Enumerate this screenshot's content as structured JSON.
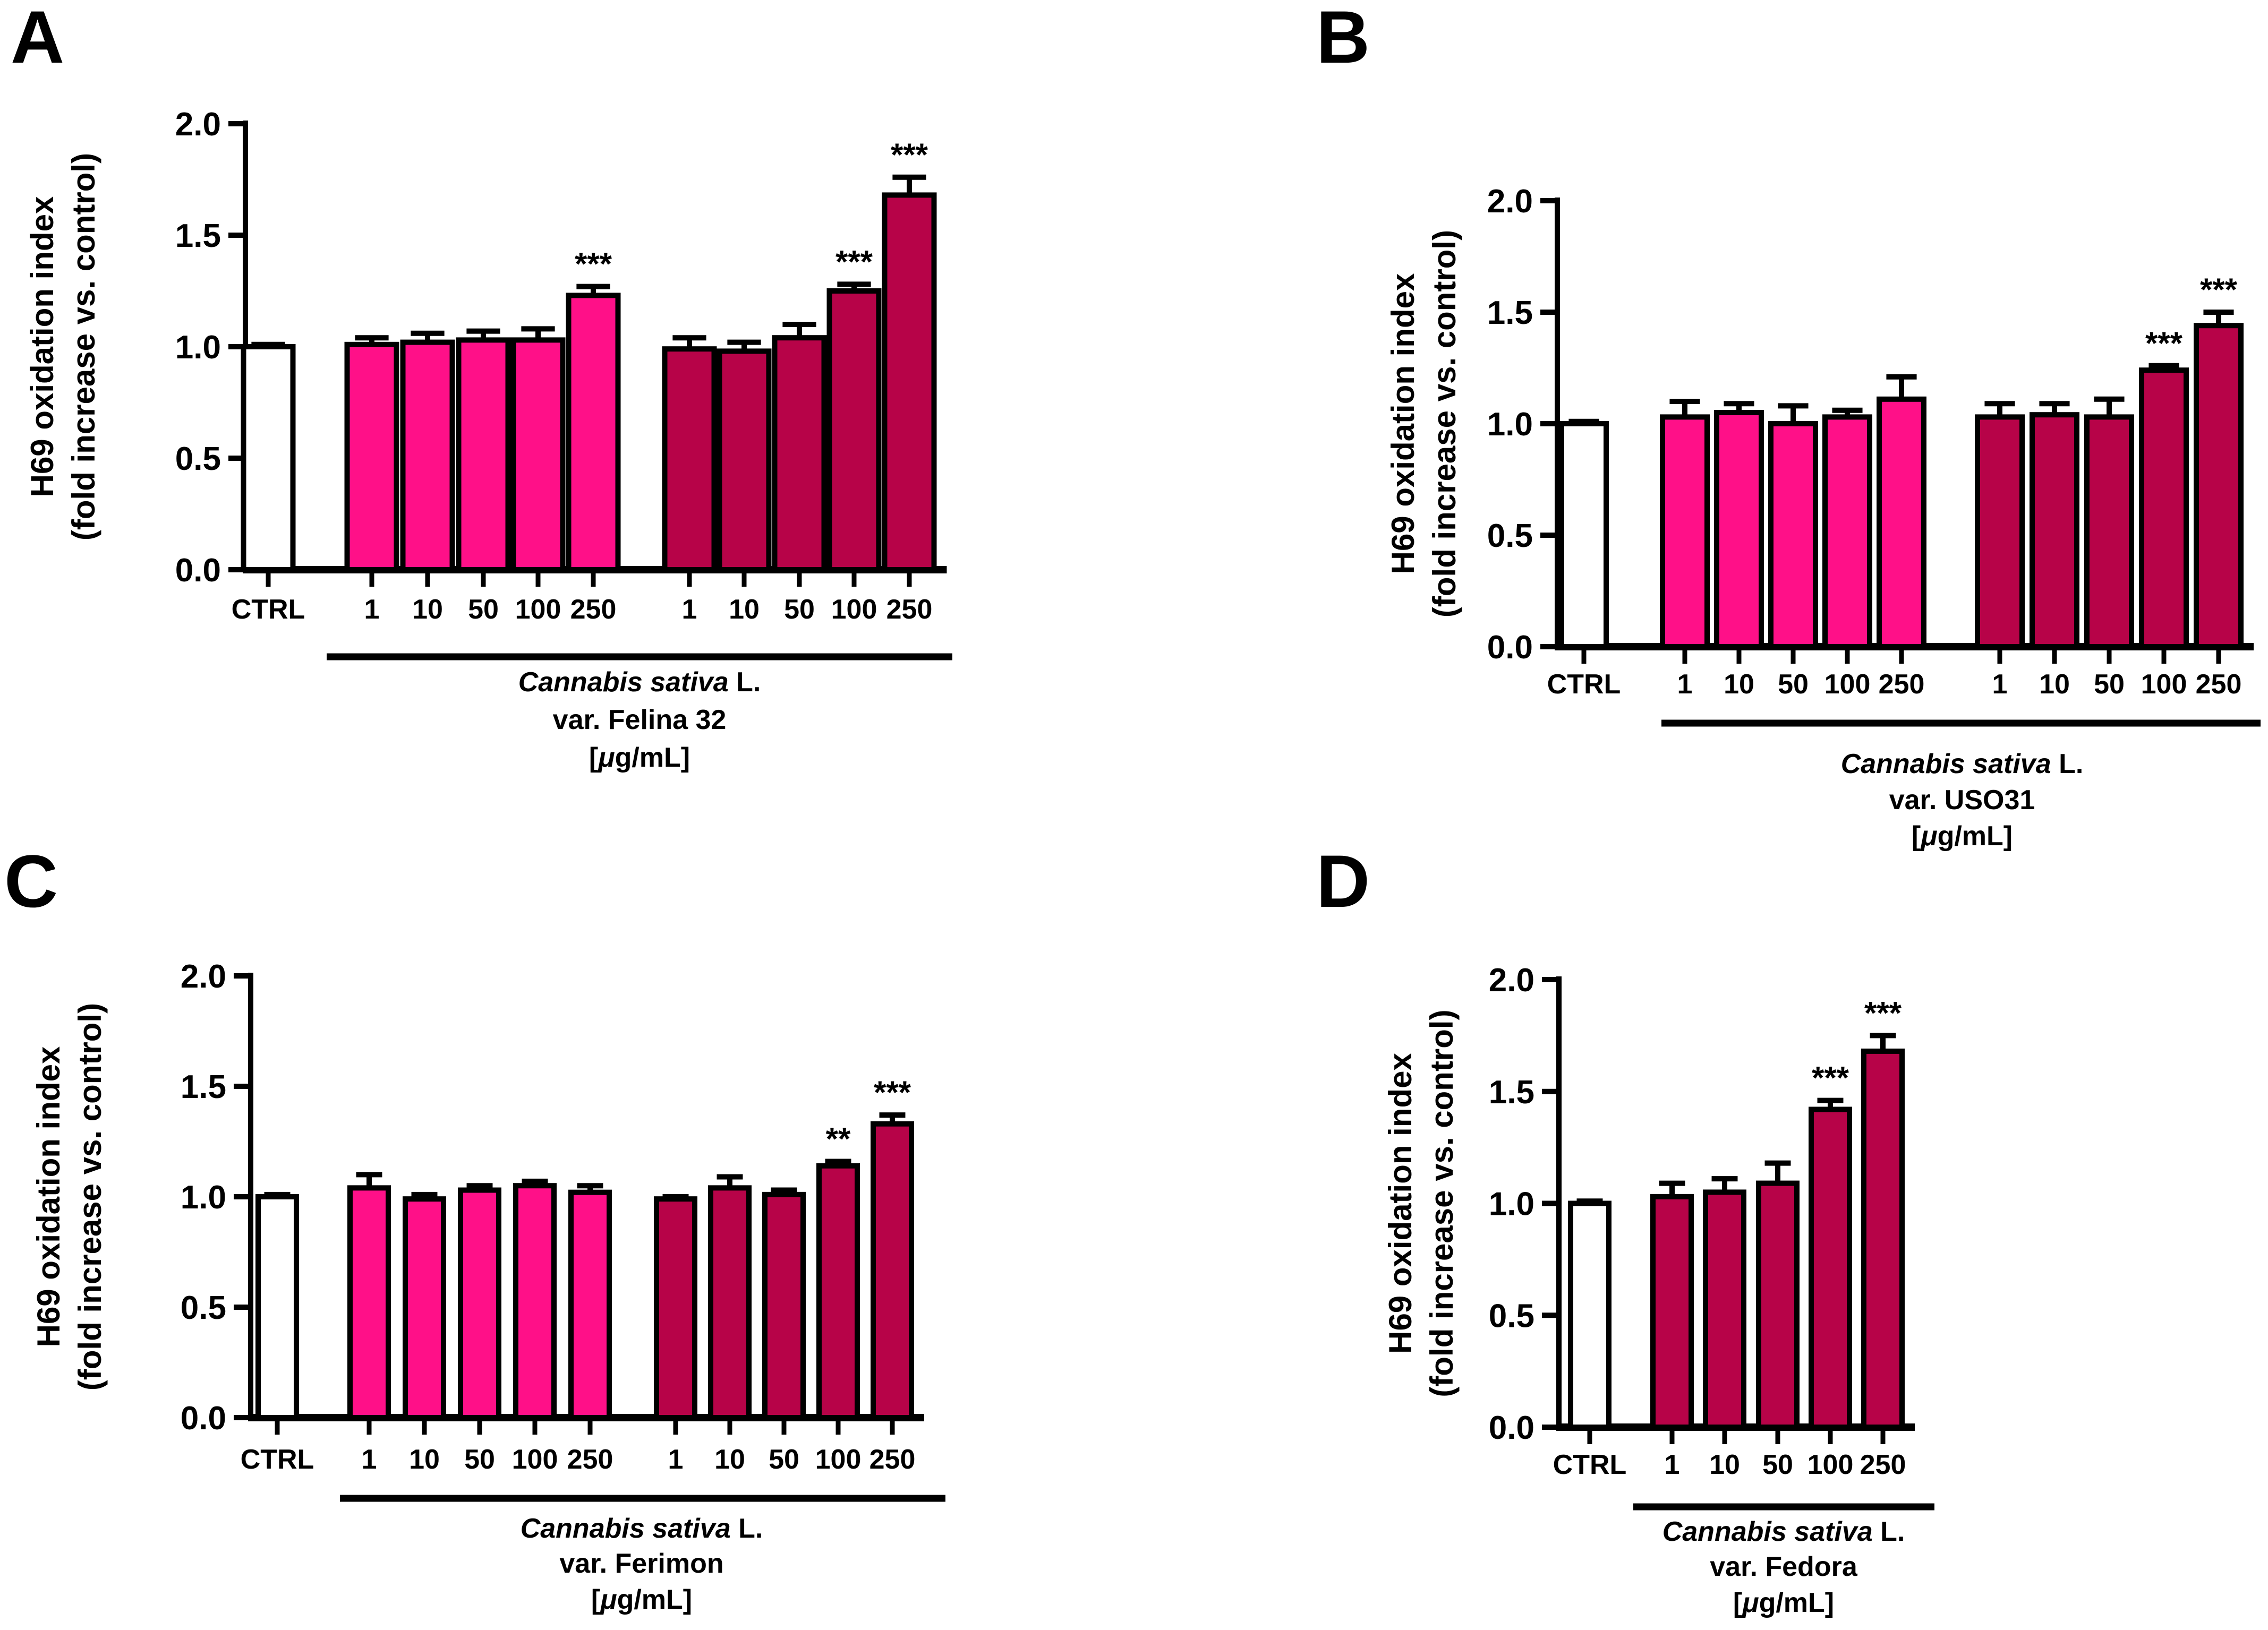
{
  "figure": {
    "background": "#FFFFFF",
    "y_axis": {
      "title_line1": "H69 oxidation index",
      "title_line2": "(fold increase vs. control)",
      "ticks": [
        "0.0",
        "0.5",
        "1.0",
        "1.5",
        "2.0"
      ],
      "min": 0,
      "max": 2.0,
      "grid": "off"
    },
    "legend": "none",
    "colors": {
      "control_fill": "#FFFFFF",
      "pink_fill": "#FF1088",
      "dark_fill": "#B70348",
      "outline": "#000000"
    }
  },
  "chart_data": [
    {
      "panel": "A",
      "type": "bar",
      "species": "Cannabis sativa",
      "species_suffix": " L.",
      "variety": "var. Felina 32",
      "units_prefix": "[",
      "units_mu": "μ",
      "units_suffix": "g/mL]",
      "x_labels": [
        "CTRL",
        "1",
        "10",
        "50",
        "100",
        "250",
        "1",
        "10",
        "50",
        "100",
        "250"
      ],
      "series": [
        "control",
        "pink",
        "pink",
        "pink",
        "pink",
        "pink",
        "dark",
        "dark",
        "dark",
        "dark",
        "dark"
      ],
      "values": [
        1.0,
        1.01,
        1.02,
        1.03,
        1.03,
        1.23,
        0.99,
        0.98,
        1.04,
        1.25,
        1.68
      ],
      "errors": [
        0.01,
        0.03,
        0.04,
        0.04,
        0.05,
        0.04,
        0.05,
        0.04,
        0.06,
        0.03,
        0.08
      ],
      "significance": [
        "",
        "",
        "",
        "",
        "",
        "***",
        "",
        "",
        "",
        "***",
        "***"
      ]
    },
    {
      "panel": "B",
      "type": "bar",
      "species": "Cannabis sativa",
      "species_suffix": " L.",
      "variety": "var. USO31",
      "units_prefix": "[",
      "units_mu": "μ",
      "units_suffix": "g/mL]",
      "x_labels": [
        "CTRL",
        "1",
        "10",
        "50",
        "100",
        "250",
        "1",
        "10",
        "50",
        "100",
        "250"
      ],
      "series": [
        "control",
        "pink",
        "pink",
        "pink",
        "pink",
        "pink",
        "dark",
        "dark",
        "dark",
        "dark",
        "dark"
      ],
      "values": [
        1.0,
        1.03,
        1.05,
        1.0,
        1.03,
        1.11,
        1.03,
        1.04,
        1.03,
        1.24,
        1.44
      ],
      "errors": [
        0.01,
        0.07,
        0.04,
        0.08,
        0.03,
        0.1,
        0.06,
        0.05,
        0.08,
        0.02,
        0.06
      ],
      "significance": [
        "",
        "",
        "",
        "",
        "",
        "",
        "",
        "",
        "",
        "***",
        "***"
      ]
    },
    {
      "panel": "C",
      "type": "bar",
      "species": "Cannabis sativa",
      "species_suffix": " L.",
      "variety": "var. Ferimon",
      "units_prefix": "[",
      "units_mu": "μ",
      "units_suffix": "g/mL]",
      "x_labels": [
        "CTRL",
        "1",
        "10",
        "50",
        "100",
        "250",
        "1",
        "10",
        "50",
        "100",
        "250"
      ],
      "series": [
        "control",
        "pink",
        "pink",
        "pink",
        "pink",
        "pink",
        "dark",
        "dark",
        "dark",
        "dark",
        "dark"
      ],
      "values": [
        1.0,
        1.04,
        0.99,
        1.03,
        1.05,
        1.02,
        0.99,
        1.04,
        1.01,
        1.14,
        1.33
      ],
      "errors": [
        0.01,
        0.06,
        0.02,
        0.02,
        0.02,
        0.03,
        0.01,
        0.05,
        0.02,
        0.02,
        0.04
      ],
      "significance": [
        "",
        "",
        "",
        "",
        "",
        "",
        "",
        "",
        "",
        "**",
        "***"
      ]
    },
    {
      "panel": "D",
      "type": "bar",
      "species": "Cannabis sativa",
      "species_suffix": " L.",
      "variety": "var. Fedora",
      "units_prefix": "[",
      "units_mu": "μ",
      "units_suffix": "g/mL]",
      "x_labels": [
        "CTRL",
        "1",
        "10",
        "50",
        "100",
        "250"
      ],
      "series": [
        "control",
        "dark",
        "dark",
        "dark",
        "dark",
        "dark"
      ],
      "values": [
        1.0,
        1.03,
        1.05,
        1.09,
        1.42,
        1.68
      ],
      "errors": [
        0.01,
        0.06,
        0.06,
        0.09,
        0.04,
        0.07
      ],
      "significance": [
        "",
        "",
        "",
        "",
        "***",
        "***"
      ]
    }
  ]
}
